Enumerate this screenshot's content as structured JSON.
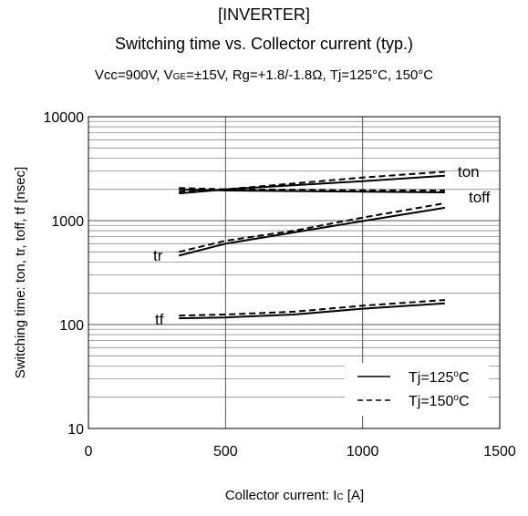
{
  "header": {
    "title": "[INVERTER]",
    "subtitle": "Switching time  vs.  Collector current  (typ.)",
    "conditions": {
      "vcc": "Vcc=900V, V",
      "vge_sub": "GE",
      "rest": "=±15V, Rg=+1.8/-1.8Ω, Tj=125°C, 150°C"
    }
  },
  "axes": {
    "xlabel_main": "Collector current: I",
    "xlabel_sub": "C",
    "xlabel_unit": " [A]",
    "ylabel": "Switching time: ton, tr, toff, tf [nsec]"
  },
  "legend": {
    "solid_label": "Tj=125",
    "dashed_label": "Tj=150",
    "degree_sup": "o",
    "unit": "C"
  },
  "chart_data": {
    "type": "line",
    "xlabel": "Collector current: Ic [A]",
    "ylabel": "Switching time: ton, tr, toff, tf [nsec]",
    "xlim": [
      0,
      1500
    ],
    "ylim": [
      10,
      10000
    ],
    "yscale": "log",
    "xticks": [
      0,
      500,
      1000,
      1500
    ],
    "yticks": [
      10,
      100,
      1000,
      10000
    ],
    "grid": true,
    "legend_position": "bottom-right",
    "curve_labels": [
      "ton",
      "toff",
      "tr",
      "tf"
    ],
    "series": [
      {
        "name": "ton",
        "tj": "Tj=125°C",
        "style": "solid",
        "x": [
          330,
          500,
          1000,
          1300
        ],
        "y": [
          1830,
          2000,
          2400,
          2700
        ]
      },
      {
        "name": "ton",
        "tj": "Tj=150°C",
        "style": "dashed",
        "x": [
          330,
          500,
          1000,
          1300
        ],
        "y": [
          1900,
          2000,
          2600,
          2950
        ]
      },
      {
        "name": "toff",
        "tj": "Tj=125°C",
        "style": "solid",
        "x": [
          330,
          500,
          1000,
          1300
        ],
        "y": [
          2000,
          1950,
          1900,
          1870
        ]
      },
      {
        "name": "toff",
        "tj": "Tj=150°C",
        "style": "dashed",
        "x": [
          330,
          500,
          1000,
          1300
        ],
        "y": [
          2060,
          2000,
          1960,
          1950
        ]
      },
      {
        "name": "tr",
        "tj": "Tj=125°C",
        "style": "solid",
        "x": [
          330,
          500,
          750,
          1000,
          1300
        ],
        "y": [
          460,
          600,
          770,
          990,
          1330
        ]
      },
      {
        "name": "tr",
        "tj": "Tj=150°C",
        "style": "dashed",
        "x": [
          330,
          500,
          750,
          1000,
          1300
        ],
        "y": [
          500,
          640,
          800,
          1070,
          1470
        ]
      },
      {
        "name": "tf",
        "tj": "Tj=125°C",
        "style": "solid",
        "x": [
          330,
          500,
          750,
          1000,
          1300
        ],
        "y": [
          115,
          117,
          125,
          142,
          160
        ]
      },
      {
        "name": "tf",
        "tj": "Tj=150°C",
        "style": "dashed",
        "x": [
          330,
          500,
          750,
          1000,
          1300
        ],
        "y": [
          122,
          125,
          133,
          152,
          172
        ]
      }
    ]
  }
}
